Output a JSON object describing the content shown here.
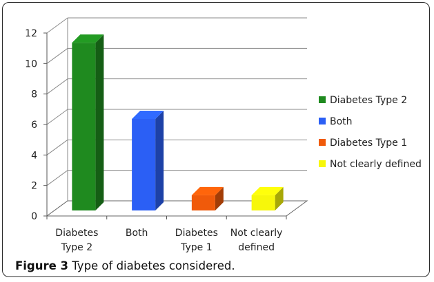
{
  "chart_data": {
    "type": "bar",
    "categories": [
      "Diabetes Type 2",
      "Both",
      "Diabetes Type 1",
      "Not clearly defined"
    ],
    "category_tick_lines": [
      [
        "Diabetes",
        "Type 2"
      ],
      [
        "Both"
      ],
      [
        "Diabetes",
        "Type 1"
      ],
      [
        "Not clearly",
        "defined"
      ]
    ],
    "values": [
      11,
      6,
      1,
      1
    ],
    "colors": [
      "#1f8a1f",
      "#2b5ff5",
      "#f05a0a",
      "#f7f70a"
    ],
    "legend": [
      "Diabetes Type 2",
      "Both",
      "Diabetes Type 1",
      "Not clearly defined"
    ],
    "legend_position": "right",
    "y_ticks": [
      "0",
      "2",
      "4",
      "6",
      "8",
      "10",
      "12"
    ],
    "ylim": [
      0,
      12
    ],
    "grid": true,
    "style": "3d-column"
  },
  "caption": {
    "label": "Figure 3",
    "text": " Type of diabetes considered."
  }
}
